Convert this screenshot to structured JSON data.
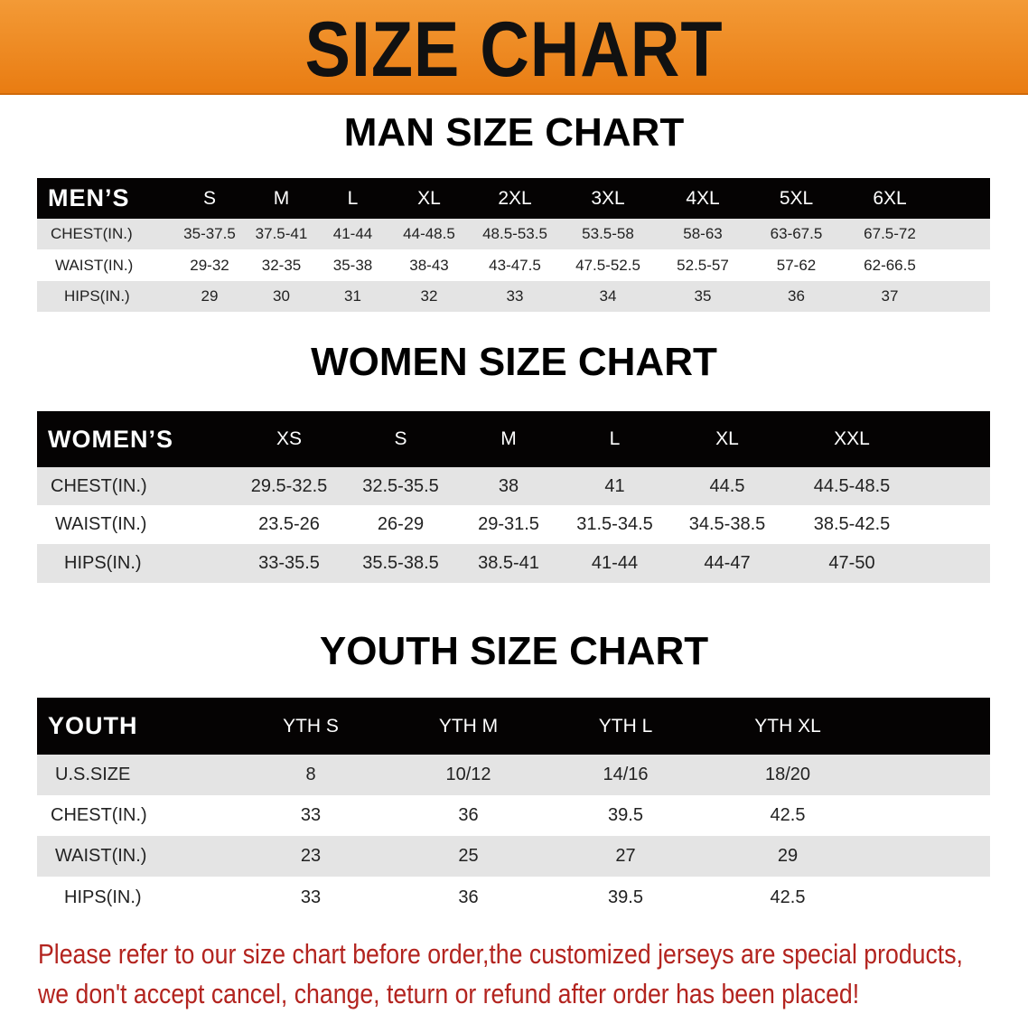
{
  "banner": {
    "title": "SIZE CHART",
    "color": "#ee8a1e"
  },
  "men": {
    "title": "MAN SIZE CHART",
    "header": [
      "MEN’S",
      "S",
      "M",
      "L",
      "XL",
      "2XL",
      "3XL",
      "4XL",
      "5XL",
      "6XL"
    ],
    "rows": [
      [
        "CHEST(IN.)",
        "35-37.5",
        "37.5-41",
        "41-44",
        "44-48.5",
        "48.5-53.5",
        "53.5-58",
        "58-63",
        "63-67.5",
        "67.5-72"
      ],
      [
        "WAIST(IN.)",
        "29-32",
        "32-35",
        "35-38",
        "38-43",
        "43-47.5",
        "47.5-52.5",
        "52.5-57",
        "57-62",
        "62-66.5"
      ],
      [
        "HIPS(IN.)",
        "29",
        "30",
        "31",
        "32",
        "33",
        "34",
        "35",
        "36",
        "37"
      ]
    ]
  },
  "women": {
    "title": "WOMEN SIZE CHART",
    "header": [
      "WOMEN’S",
      "XS",
      "S",
      "M",
      "L",
      "XL",
      "XXL"
    ],
    "rows": [
      [
        "CHEST(IN.)",
        "29.5-32.5",
        "32.5-35.5",
        "38",
        "41",
        "44.5",
        "44.5-48.5"
      ],
      [
        "WAIST(IN.)",
        "23.5-26",
        "26-29",
        "29-31.5",
        "31.5-34.5",
        "34.5-38.5",
        "38.5-42.5"
      ],
      [
        "HIPS(IN.)",
        "33-35.5",
        "35.5-38.5",
        "38.5-41",
        "41-44",
        "44-47",
        "47-50"
      ]
    ]
  },
  "youth": {
    "title": "YOUTH SIZE CHART",
    "header": [
      "YOUTH",
      "YTH S",
      "YTH M",
      "YTH L",
      "YTH XL"
    ],
    "rows": [
      [
        "U.S.SIZE",
        "8",
        "10/12",
        "14/16",
        "18/20"
      ],
      [
        "CHEST(IN.)",
        "33",
        "36",
        "39.5",
        "42.5"
      ],
      [
        "WAIST(IN.)",
        "23",
        "25",
        "27",
        "29"
      ],
      [
        "HIPS(IN.)",
        "33",
        "36",
        "39.5",
        "42.5"
      ]
    ]
  },
  "note": {
    "line1": "Please refer to our size chart before order,the customized jerseys are special products,",
    "line2": "we don't accept cancel, change, teturn or refund after order has been placed!",
    "color": "#b3241f"
  }
}
